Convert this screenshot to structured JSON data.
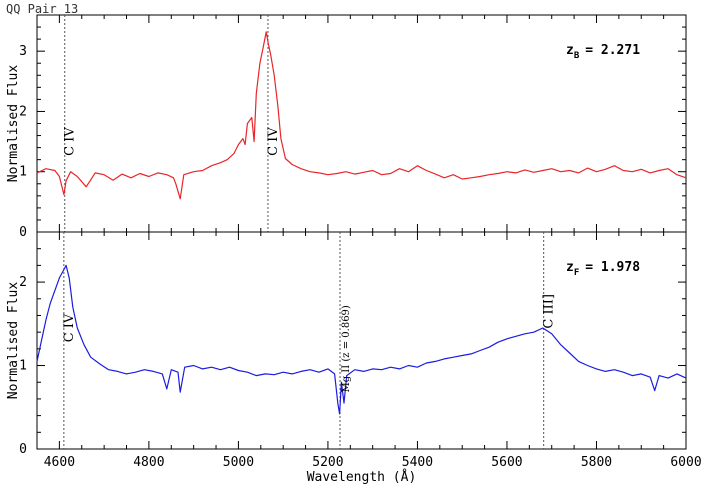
{
  "title": "QQ Pair 13",
  "chart_data": [
    {
      "type": "line",
      "panel": "top",
      "ylabel": "Normalised Flux",
      "xlim": [
        4550,
        6000
      ],
      "ylim": [
        0,
        3.6
      ],
      "yticks": [
        0,
        1,
        2,
        3
      ],
      "color": "#e8262a",
      "redshift": {
        "symbol": "z",
        "subscript": "B",
        "text": "= 2.271"
      },
      "lines": [
        {
          "name": "C IV",
          "x": 4612,
          "label_y": 1.5
        },
        {
          "name": "C IV",
          "x": 5066,
          "label_y": 1.5
        }
      ],
      "spectrum": [
        [
          4550,
          0.98
        ],
        [
          4570,
          1.05
        ],
        [
          4590,
          1.02
        ],
        [
          4600,
          0.92
        ],
        [
          4610,
          0.62
        ],
        [
          4615,
          0.85
        ],
        [
          4625,
          1.0
        ],
        [
          4640,
          0.92
        ],
        [
          4660,
          0.75
        ],
        [
          4680,
          0.98
        ],
        [
          4700,
          0.95
        ],
        [
          4720,
          0.86
        ],
        [
          4740,
          0.96
        ],
        [
          4760,
          0.9
        ],
        [
          4780,
          0.97
        ],
        [
          4800,
          0.92
        ],
        [
          4820,
          0.98
        ],
        [
          4840,
          0.95
        ],
        [
          4855,
          0.9
        ],
        [
          4860,
          0.8
        ],
        [
          4870,
          0.55
        ],
        [
          4878,
          0.95
        ],
        [
          4900,
          1.0
        ],
        [
          4920,
          1.02
        ],
        [
          4940,
          1.1
        ],
        [
          4960,
          1.15
        ],
        [
          4975,
          1.2
        ],
        [
          4990,
          1.3
        ],
        [
          5000,
          1.45
        ],
        [
          5010,
          1.55
        ],
        [
          5015,
          1.45
        ],
        [
          5020,
          1.8
        ],
        [
          5030,
          1.9
        ],
        [
          5035,
          1.5
        ],
        [
          5040,
          2.3
        ],
        [
          5048,
          2.8
        ],
        [
          5055,
          3.05
        ],
        [
          5062,
          3.32
        ],
        [
          5066,
          3.15
        ],
        [
          5072,
          2.95
        ],
        [
          5080,
          2.6
        ],
        [
          5088,
          2.1
        ],
        [
          5095,
          1.55
        ],
        [
          5105,
          1.22
        ],
        [
          5120,
          1.12
        ],
        [
          5140,
          1.05
        ],
        [
          5160,
          1.0
        ],
        [
          5180,
          0.98
        ],
        [
          5200,
          0.95
        ],
        [
          5220,
          0.97
        ],
        [
          5240,
          1.0
        ],
        [
          5260,
          0.96
        ],
        [
          5280,
          0.99
        ],
        [
          5300,
          1.02
        ],
        [
          5320,
          0.95
        ],
        [
          5340,
          0.97
        ],
        [
          5360,
          1.05
        ],
        [
          5380,
          1.0
        ],
        [
          5400,
          1.1
        ],
        [
          5420,
          1.02
        ],
        [
          5440,
          0.96
        ],
        [
          5460,
          0.9
        ],
        [
          5480,
          0.95
        ],
        [
          5500,
          0.88
        ],
        [
          5520,
          0.9
        ],
        [
          5540,
          0.92
        ],
        [
          5560,
          0.95
        ],
        [
          5580,
          0.97
        ],
        [
          5600,
          1.0
        ],
        [
          5620,
          0.98
        ],
        [
          5640,
          1.03
        ],
        [
          5660,
          0.99
        ],
        [
          5680,
          1.02
        ],
        [
          5700,
          1.05
        ],
        [
          5720,
          1.0
        ],
        [
          5740,
          1.02
        ],
        [
          5760,
          0.98
        ],
        [
          5780,
          1.06
        ],
        [
          5800,
          1.0
        ],
        [
          5820,
          1.04
        ],
        [
          5840,
          1.1
        ],
        [
          5860,
          1.02
        ],
        [
          5880,
          1.0
        ],
        [
          5900,
          1.04
        ],
        [
          5920,
          0.98
        ],
        [
          5940,
          1.02
        ],
        [
          5960,
          1.05
        ],
        [
          5980,
          0.95
        ],
        [
          6000,
          0.9
        ]
      ]
    },
    {
      "type": "line",
      "panel": "bottom",
      "xlabel": "Wavelength (Å)",
      "ylabel": "Normalised Flux",
      "xlim": [
        4550,
        6000
      ],
      "ylim": [
        0,
        2.6
      ],
      "xticks": [
        4600,
        4800,
        5000,
        5200,
        5400,
        5600,
        5800,
        6000
      ],
      "yticks": [
        0,
        1,
        2
      ],
      "color": "#1c1ce0",
      "redshift": {
        "symbol": "z",
        "subscript": "F",
        "text": "= 1.978"
      },
      "lines": [
        {
          "name": "C IV",
          "x": 4610,
          "label_y": 1.45
        },
        {
          "name": "Mg II (z = 0.869)",
          "x": 5227,
          "label_y": 1.2,
          "small": true
        },
        {
          "name": "C III]",
          "x": 5682,
          "label_y": 1.65
        }
      ],
      "spectrum": [
        [
          4550,
          1.05
        ],
        [
          4560,
          1.3
        ],
        [
          4570,
          1.55
        ],
        [
          4580,
          1.75
        ],
        [
          4590,
          1.9
        ],
        [
          4600,
          2.05
        ],
        [
          4610,
          2.15
        ],
        [
          4615,
          2.2
        ],
        [
          4622,
          2.05
        ],
        [
          4630,
          1.7
        ],
        [
          4640,
          1.45
        ],
        [
          4655,
          1.25
        ],
        [
          4670,
          1.1
        ],
        [
          4690,
          1.02
        ],
        [
          4710,
          0.95
        ],
        [
          4730,
          0.93
        ],
        [
          4750,
          0.9
        ],
        [
          4770,
          0.92
        ],
        [
          4790,
          0.95
        ],
        [
          4810,
          0.93
        ],
        [
          4830,
          0.9
        ],
        [
          4840,
          0.72
        ],
        [
          4850,
          0.95
        ],
        [
          4865,
          0.92
        ],
        [
          4870,
          0.68
        ],
        [
          4880,
          0.98
        ],
        [
          4900,
          1.0
        ],
        [
          4920,
          0.96
        ],
        [
          4940,
          0.98
        ],
        [
          4960,
          0.95
        ],
        [
          4980,
          0.98
        ],
        [
          5000,
          0.94
        ],
        [
          5020,
          0.92
        ],
        [
          5040,
          0.88
        ],
        [
          5060,
          0.9
        ],
        [
          5080,
          0.89
        ],
        [
          5100,
          0.92
        ],
        [
          5120,
          0.9
        ],
        [
          5140,
          0.93
        ],
        [
          5160,
          0.95
        ],
        [
          5180,
          0.92
        ],
        [
          5200,
          0.96
        ],
        [
          5215,
          0.9
        ],
        [
          5222,
          0.55
        ],
        [
          5226,
          0.42
        ],
        [
          5230,
          0.8
        ],
        [
          5236,
          0.55
        ],
        [
          5242,
          0.88
        ],
        [
          5260,
          0.95
        ],
        [
          5280,
          0.93
        ],
        [
          5300,
          0.96
        ],
        [
          5320,
          0.95
        ],
        [
          5340,
          0.98
        ],
        [
          5360,
          0.96
        ],
        [
          5380,
          1.0
        ],
        [
          5400,
          0.98
        ],
        [
          5420,
          1.03
        ],
        [
          5440,
          1.05
        ],
        [
          5460,
          1.08
        ],
        [
          5480,
          1.1
        ],
        [
          5500,
          1.12
        ],
        [
          5520,
          1.14
        ],
        [
          5540,
          1.18
        ],
        [
          5560,
          1.22
        ],
        [
          5580,
          1.28
        ],
        [
          5600,
          1.32
        ],
        [
          5620,
          1.35
        ],
        [
          5640,
          1.38
        ],
        [
          5660,
          1.4
        ],
        [
          5680,
          1.45
        ],
        [
          5700,
          1.38
        ],
        [
          5720,
          1.25
        ],
        [
          5740,
          1.15
        ],
        [
          5760,
          1.05
        ],
        [
          5780,
          1.0
        ],
        [
          5800,
          0.96
        ],
        [
          5820,
          0.93
        ],
        [
          5840,
          0.95
        ],
        [
          5860,
          0.92
        ],
        [
          5880,
          0.88
        ],
        [
          5900,
          0.9
        ],
        [
          5920,
          0.86
        ],
        [
          5930,
          0.7
        ],
        [
          5940,
          0.88
        ],
        [
          5960,
          0.85
        ],
        [
          5980,
          0.9
        ],
        [
          6000,
          0.85
        ]
      ]
    }
  ]
}
